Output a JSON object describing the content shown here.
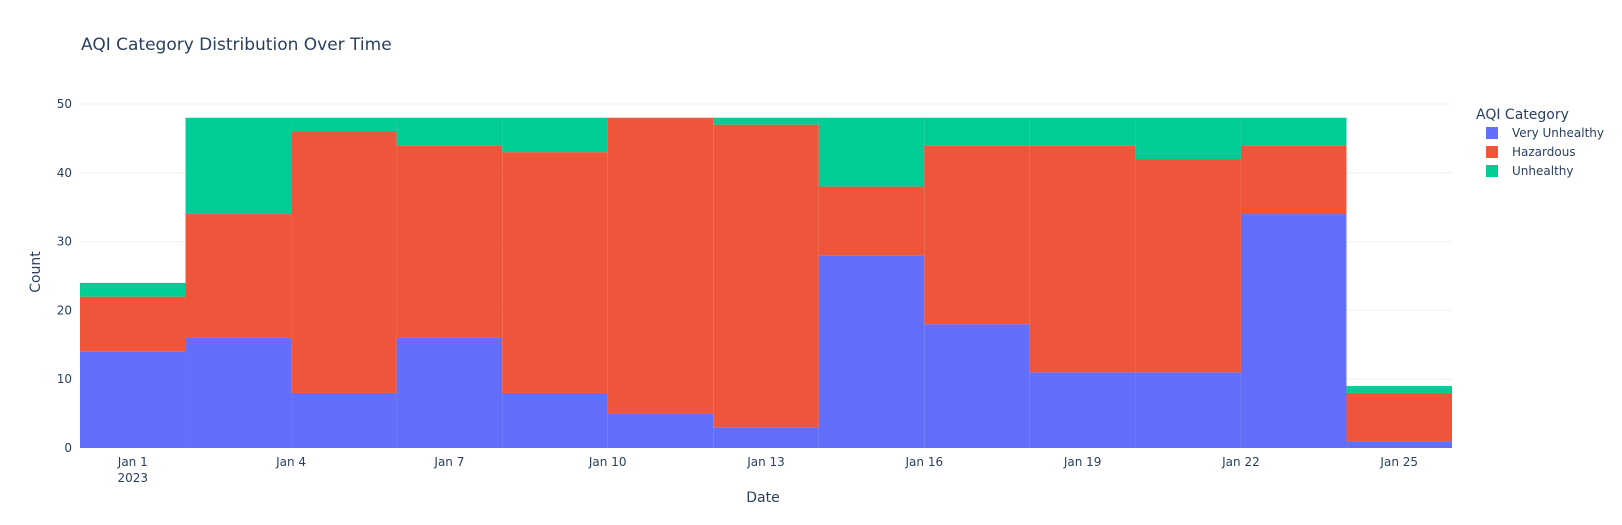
{
  "chart_data": {
    "type": "bar",
    "title": "AQI Category Distribution Over Time",
    "xlabel": "Date",
    "ylabel": "Count",
    "ylim": [
      0,
      50
    ],
    "yticks": [
      0,
      10,
      20,
      30,
      40,
      50
    ],
    "grid": true,
    "stacked": true,
    "xlim": [
      "2022-12-31",
      "2023-01-26"
    ],
    "xticks": [
      {
        "date": "2023-01-01",
        "label": "Jan 1",
        "sublabel": "2023"
      },
      {
        "date": "2023-01-04",
        "label": "Jan 4"
      },
      {
        "date": "2023-01-07",
        "label": "Jan 7"
      },
      {
        "date": "2023-01-10",
        "label": "Jan 10"
      },
      {
        "date": "2023-01-13",
        "label": "Jan 13"
      },
      {
        "date": "2023-01-16",
        "label": "Jan 16"
      },
      {
        "date": "2023-01-19",
        "label": "Jan 19"
      },
      {
        "date": "2023-01-22",
        "label": "Jan 22"
      },
      {
        "date": "2023-01-25",
        "label": "Jan 25"
      }
    ],
    "bins": [
      {
        "start": "2022-12-31",
        "end": "2023-01-02"
      },
      {
        "start": "2023-01-02",
        "end": "2023-01-04"
      },
      {
        "start": "2023-01-04",
        "end": "2023-01-06"
      },
      {
        "start": "2023-01-06",
        "end": "2023-01-08"
      },
      {
        "start": "2023-01-08",
        "end": "2023-01-10"
      },
      {
        "start": "2023-01-10",
        "end": "2023-01-12"
      },
      {
        "start": "2023-01-12",
        "end": "2023-01-14"
      },
      {
        "start": "2023-01-14",
        "end": "2023-01-16"
      },
      {
        "start": "2023-01-16",
        "end": "2023-01-18"
      },
      {
        "start": "2023-01-18",
        "end": "2023-01-20"
      },
      {
        "start": "2023-01-20",
        "end": "2023-01-22"
      },
      {
        "start": "2023-01-22",
        "end": "2023-01-24"
      },
      {
        "start": "2023-01-24",
        "end": "2023-01-26"
      }
    ],
    "legend_title": "AQI Category",
    "legend_position": "right",
    "series": [
      {
        "name": "Very Unhealthy",
        "color": "#636efa",
        "values": [
          14,
          16,
          8,
          16,
          8,
          5,
          3,
          28,
          18,
          11,
          11,
          34,
          1
        ]
      },
      {
        "name": "Hazardous",
        "color": "#ef553b",
        "values": [
          8,
          18,
          38,
          28,
          35,
          43,
          44,
          10,
          26,
          33,
          31,
          10,
          7
        ]
      },
      {
        "name": "Unhealthy",
        "color": "#00cc96",
        "values": [
          2,
          14,
          2,
          4,
          5,
          0,
          1,
          10,
          4,
          4,
          6,
          4,
          1
        ]
      }
    ]
  }
}
